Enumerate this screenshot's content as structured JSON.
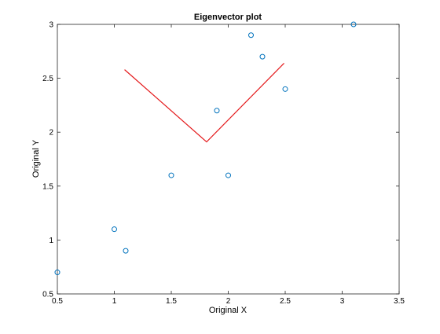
{
  "chart_data": {
    "type": "scatter",
    "title": "Eigenvector plot",
    "xlabel": "Original X",
    "ylabel": "Original Y",
    "xlim": [
      0.5,
      3.5
    ],
    "ylim": [
      0.5,
      3
    ],
    "xticks": [
      0.5,
      1,
      1.5,
      2,
      2.5,
      3,
      3.5
    ],
    "xtick_labels": [
      "0.5",
      "1",
      "1.5",
      "2",
      "2.5",
      "3",
      "3.5"
    ],
    "yticks": [
      0.5,
      1,
      1.5,
      2,
      2.5,
      3
    ],
    "ytick_labels": [
      "0.5",
      "1",
      "1.5",
      "2",
      "2.5",
      "3"
    ],
    "grid": false,
    "legend": "none",
    "series": [
      {
        "type": "scatter",
        "marker": "circle-open",
        "color": "#0072BD",
        "x": [
          0.5,
          1.0,
          1.1,
          1.5,
          1.9,
          2.0,
          2.2,
          2.3,
          2.5,
          3.1
        ],
        "y": [
          0.7,
          1.1,
          0.9,
          1.6,
          2.2,
          1.6,
          2.9,
          2.7,
          2.4,
          3.0
        ]
      },
      {
        "type": "line",
        "color": "#E41A1C",
        "x": [
          1.09,
          1.81,
          2.49
        ],
        "y": [
          2.58,
          1.91,
          2.64
        ]
      }
    ]
  }
}
